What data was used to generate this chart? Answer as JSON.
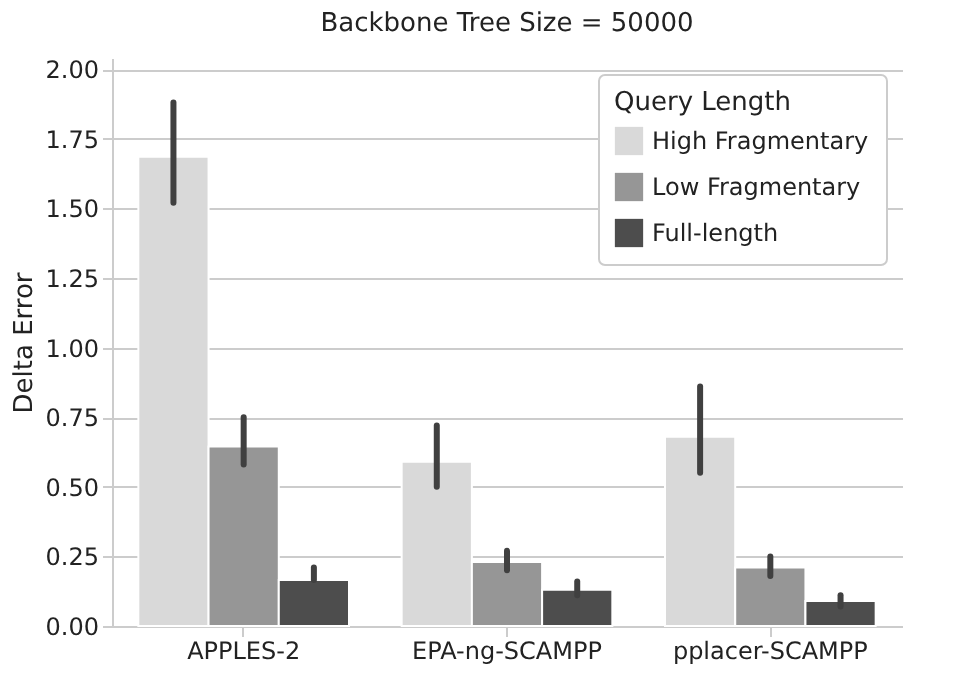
{
  "chart_data": {
    "type": "bar",
    "title": "Backbone Tree Size = 50000",
    "ylabel": "Delta Error",
    "legend_title": "Query Length",
    "categories": [
      "APPLES-2",
      "EPA-ng-SCAMPP",
      "pplacer-SCAMPP"
    ],
    "series": [
      {
        "name": "High Fragmentary",
        "color": "#d9d9d9",
        "values": [
          1.685,
          0.59,
          0.68
        ],
        "errors": [
          [
            1.52,
            1.88
          ],
          [
            0.5,
            0.72
          ],
          [
            0.55,
            0.86
          ]
        ]
      },
      {
        "name": "Low Fragmentary",
        "color": "#969696",
        "values": [
          0.645,
          0.23,
          0.21
        ],
        "errors": [
          [
            0.58,
            0.75
          ],
          [
            0.2,
            0.27
          ],
          [
            0.18,
            0.25
          ]
        ]
      },
      {
        "name": "Full-length",
        "color": "#4d4d4d",
        "values": [
          0.165,
          0.13,
          0.09
        ],
        "errors": [
          [
            0.165,
            0.21
          ],
          [
            0.11,
            0.16
          ],
          [
            0.07,
            0.11
          ]
        ]
      }
    ],
    "ylim": [
      0,
      2.04
    ],
    "yticks": [
      {
        "value": 0,
        "label": "0.00"
      },
      0.25,
      {
        "value": 0.5,
        "label": "0.50"
      },
      0.75,
      {
        "value": 1,
        "label": "1.00"
      },
      1.25,
      {
        "value": 1.5,
        "label": "1.50"
      },
      1.75,
      {
        "value": 2,
        "label": "2.00"
      }
    ],
    "grid": "y",
    "legend": "top right"
  }
}
